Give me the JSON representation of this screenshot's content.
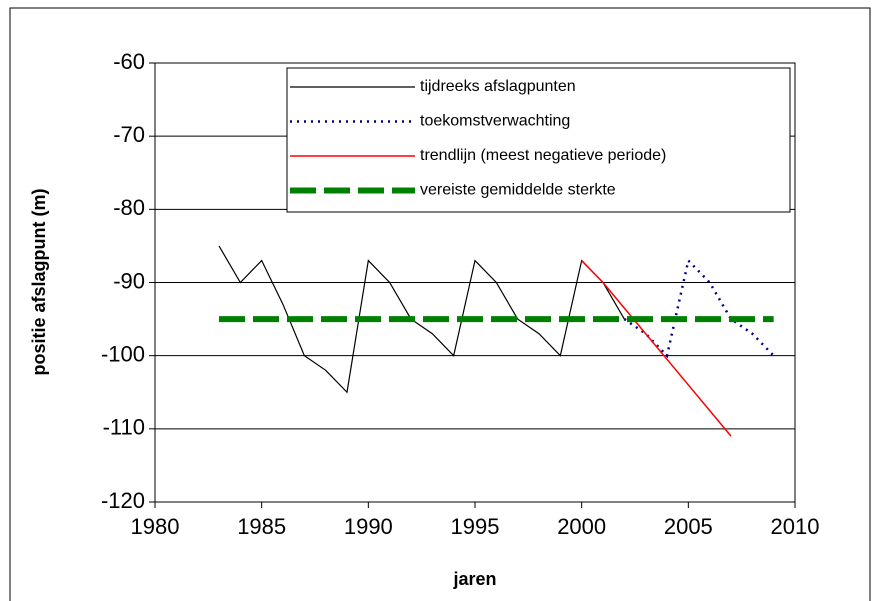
{
  "chart_data": {
    "type": "line",
    "xlabel": "jaren",
    "ylabel": "positie afslagpunt (m)",
    "xlim": [
      1980,
      2010
    ],
    "xticks": [
      1980,
      1985,
      1990,
      1995,
      2000,
      2005,
      2010
    ],
    "ylim": [
      -120,
      -60
    ],
    "yticks": [
      -120,
      -110,
      -100,
      -90,
      -80,
      -70,
      -60
    ],
    "grid": true,
    "legend": "upper right",
    "series": [
      {
        "name": "tijdreeks afslagpunten",
        "color": "#000000",
        "style": "solid",
        "x": [
          1983,
          1984,
          1985,
          1986,
          1987,
          1988,
          1989,
          1990,
          1991,
          1992,
          1993,
          1994,
          1995,
          1996,
          1997,
          1998,
          1999,
          2000,
          2001,
          2002
        ],
        "values": [
          -85,
          -90,
          -87,
          -93,
          -100,
          -102,
          -105,
          -87,
          -90,
          -95,
          -97,
          -100,
          -87,
          -90,
          -95,
          -97,
          -100,
          -87,
          -90,
          -95
        ]
      },
      {
        "name": "toekomstverwachting",
        "color": "#000080",
        "style": "dotted",
        "x": [
          2002,
          2003,
          2004,
          2005,
          2006,
          2007,
          2008,
          2009
        ],
        "values": [
          -95,
          -97,
          -100,
          -87,
          -90,
          -95,
          -97,
          -100
        ]
      },
      {
        "name": "trendlijn (meest negatieve periode)",
        "color": "#ff0000",
        "style": "solid",
        "x": [
          2000,
          2001,
          2002,
          2003,
          2004,
          2005,
          2006,
          2007
        ],
        "values": [
          -87,
          -90,
          -93.5,
          -97,
          -100.5,
          -104,
          -107.5,
          -111
        ]
      },
      {
        "name": "vereiste gemiddelde sterkte",
        "color": "#008000",
        "style": "dashed",
        "x": [
          1983,
          2009
        ],
        "values": [
          -95,
          -95
        ]
      }
    ]
  }
}
